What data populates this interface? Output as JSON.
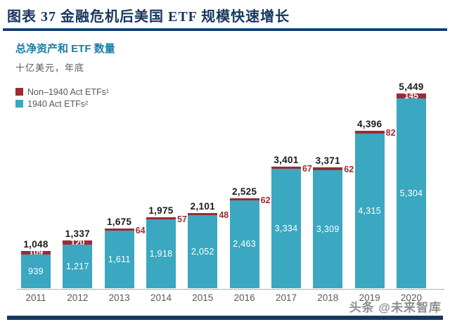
{
  "header": {
    "title": "图表 37  金融危机后美国 ETF 规模快速增长"
  },
  "chart": {
    "subtitle": "总净资产和 ETF 数量",
    "unit_note": "十亿美元，年底",
    "legend": [
      {
        "label": "Non–1940 Act ETFs¹",
        "color": "#9c2b33"
      },
      {
        "label": "1940 Act ETFs²",
        "color": "#3ba7c0"
      }
    ]
  },
  "chart_data": {
    "type": "bar",
    "stacked": true,
    "title": "总净资产和 ETF 数量",
    "subtitle": "十亿美元，年底",
    "categories": [
      "2011",
      "2012",
      "2013",
      "2014",
      "2015",
      "2016",
      "2017",
      "2018",
      "2019",
      "2020"
    ],
    "series": [
      {
        "name": "1940 Act ETFs²",
        "color": "#3ba7c0",
        "values": [
          939,
          1217,
          1611,
          1918,
          2052,
          2463,
          3334,
          3309,
          4315,
          5304
        ]
      },
      {
        "name": "Non–1940 Act ETFs¹",
        "color": "#9c2b33",
        "values": [
          109,
          120,
          64,
          57,
          48,
          62,
          67,
          62,
          82,
          145
        ]
      }
    ],
    "totals": [
      1048,
      1337,
      1675,
      1975,
      2101,
      2525,
      3401,
      3371,
      4396,
      5449
    ],
    "xlabel": "",
    "ylabel": "十亿美元",
    "ylim": [
      0,
      5600
    ],
    "grid": false,
    "legend_position": "top-left"
  },
  "watermark": "头条 @未来智库",
  "colors": {
    "accent_navy": "#17375e",
    "teal": "#3ba7c0",
    "maroon": "#9c2b33",
    "text_gray": "#595959"
  }
}
